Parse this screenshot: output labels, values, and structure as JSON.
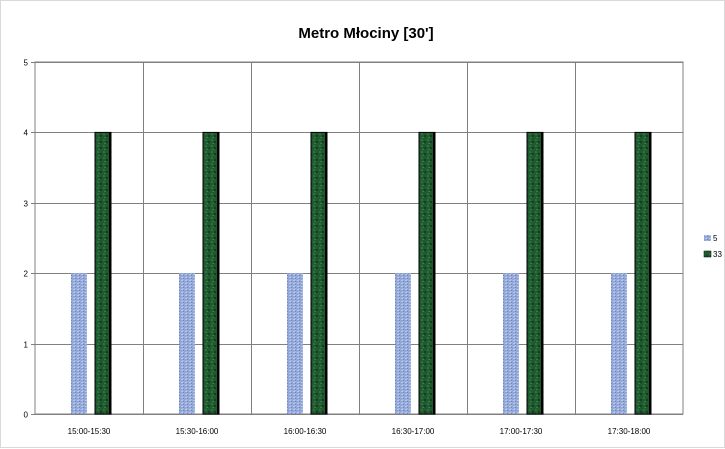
{
  "chart_data": {
    "type": "bar",
    "title": "Metro Młociny [30']",
    "xlabel": "",
    "ylabel": "",
    "categories": [
      "15:00-15:30",
      "15:30-16:00",
      "16:00-16:30",
      "16:30-17:00",
      "17:00-17:30",
      "17:30-18:00"
    ],
    "series": [
      {
        "name": "5",
        "values": [
          2,
          2,
          2,
          2,
          2,
          2
        ],
        "color": "#8fa6d6"
      },
      {
        "name": "33",
        "values": [
          4,
          4,
          4,
          4,
          4,
          4
        ],
        "color": "#1f5a2e"
      }
    ],
    "ylim": [
      0,
      5
    ],
    "yticks": [
      "0",
      "1",
      "2",
      "3",
      "4",
      "5"
    ],
    "grid": "horizontal and vertical",
    "legend": "right"
  }
}
